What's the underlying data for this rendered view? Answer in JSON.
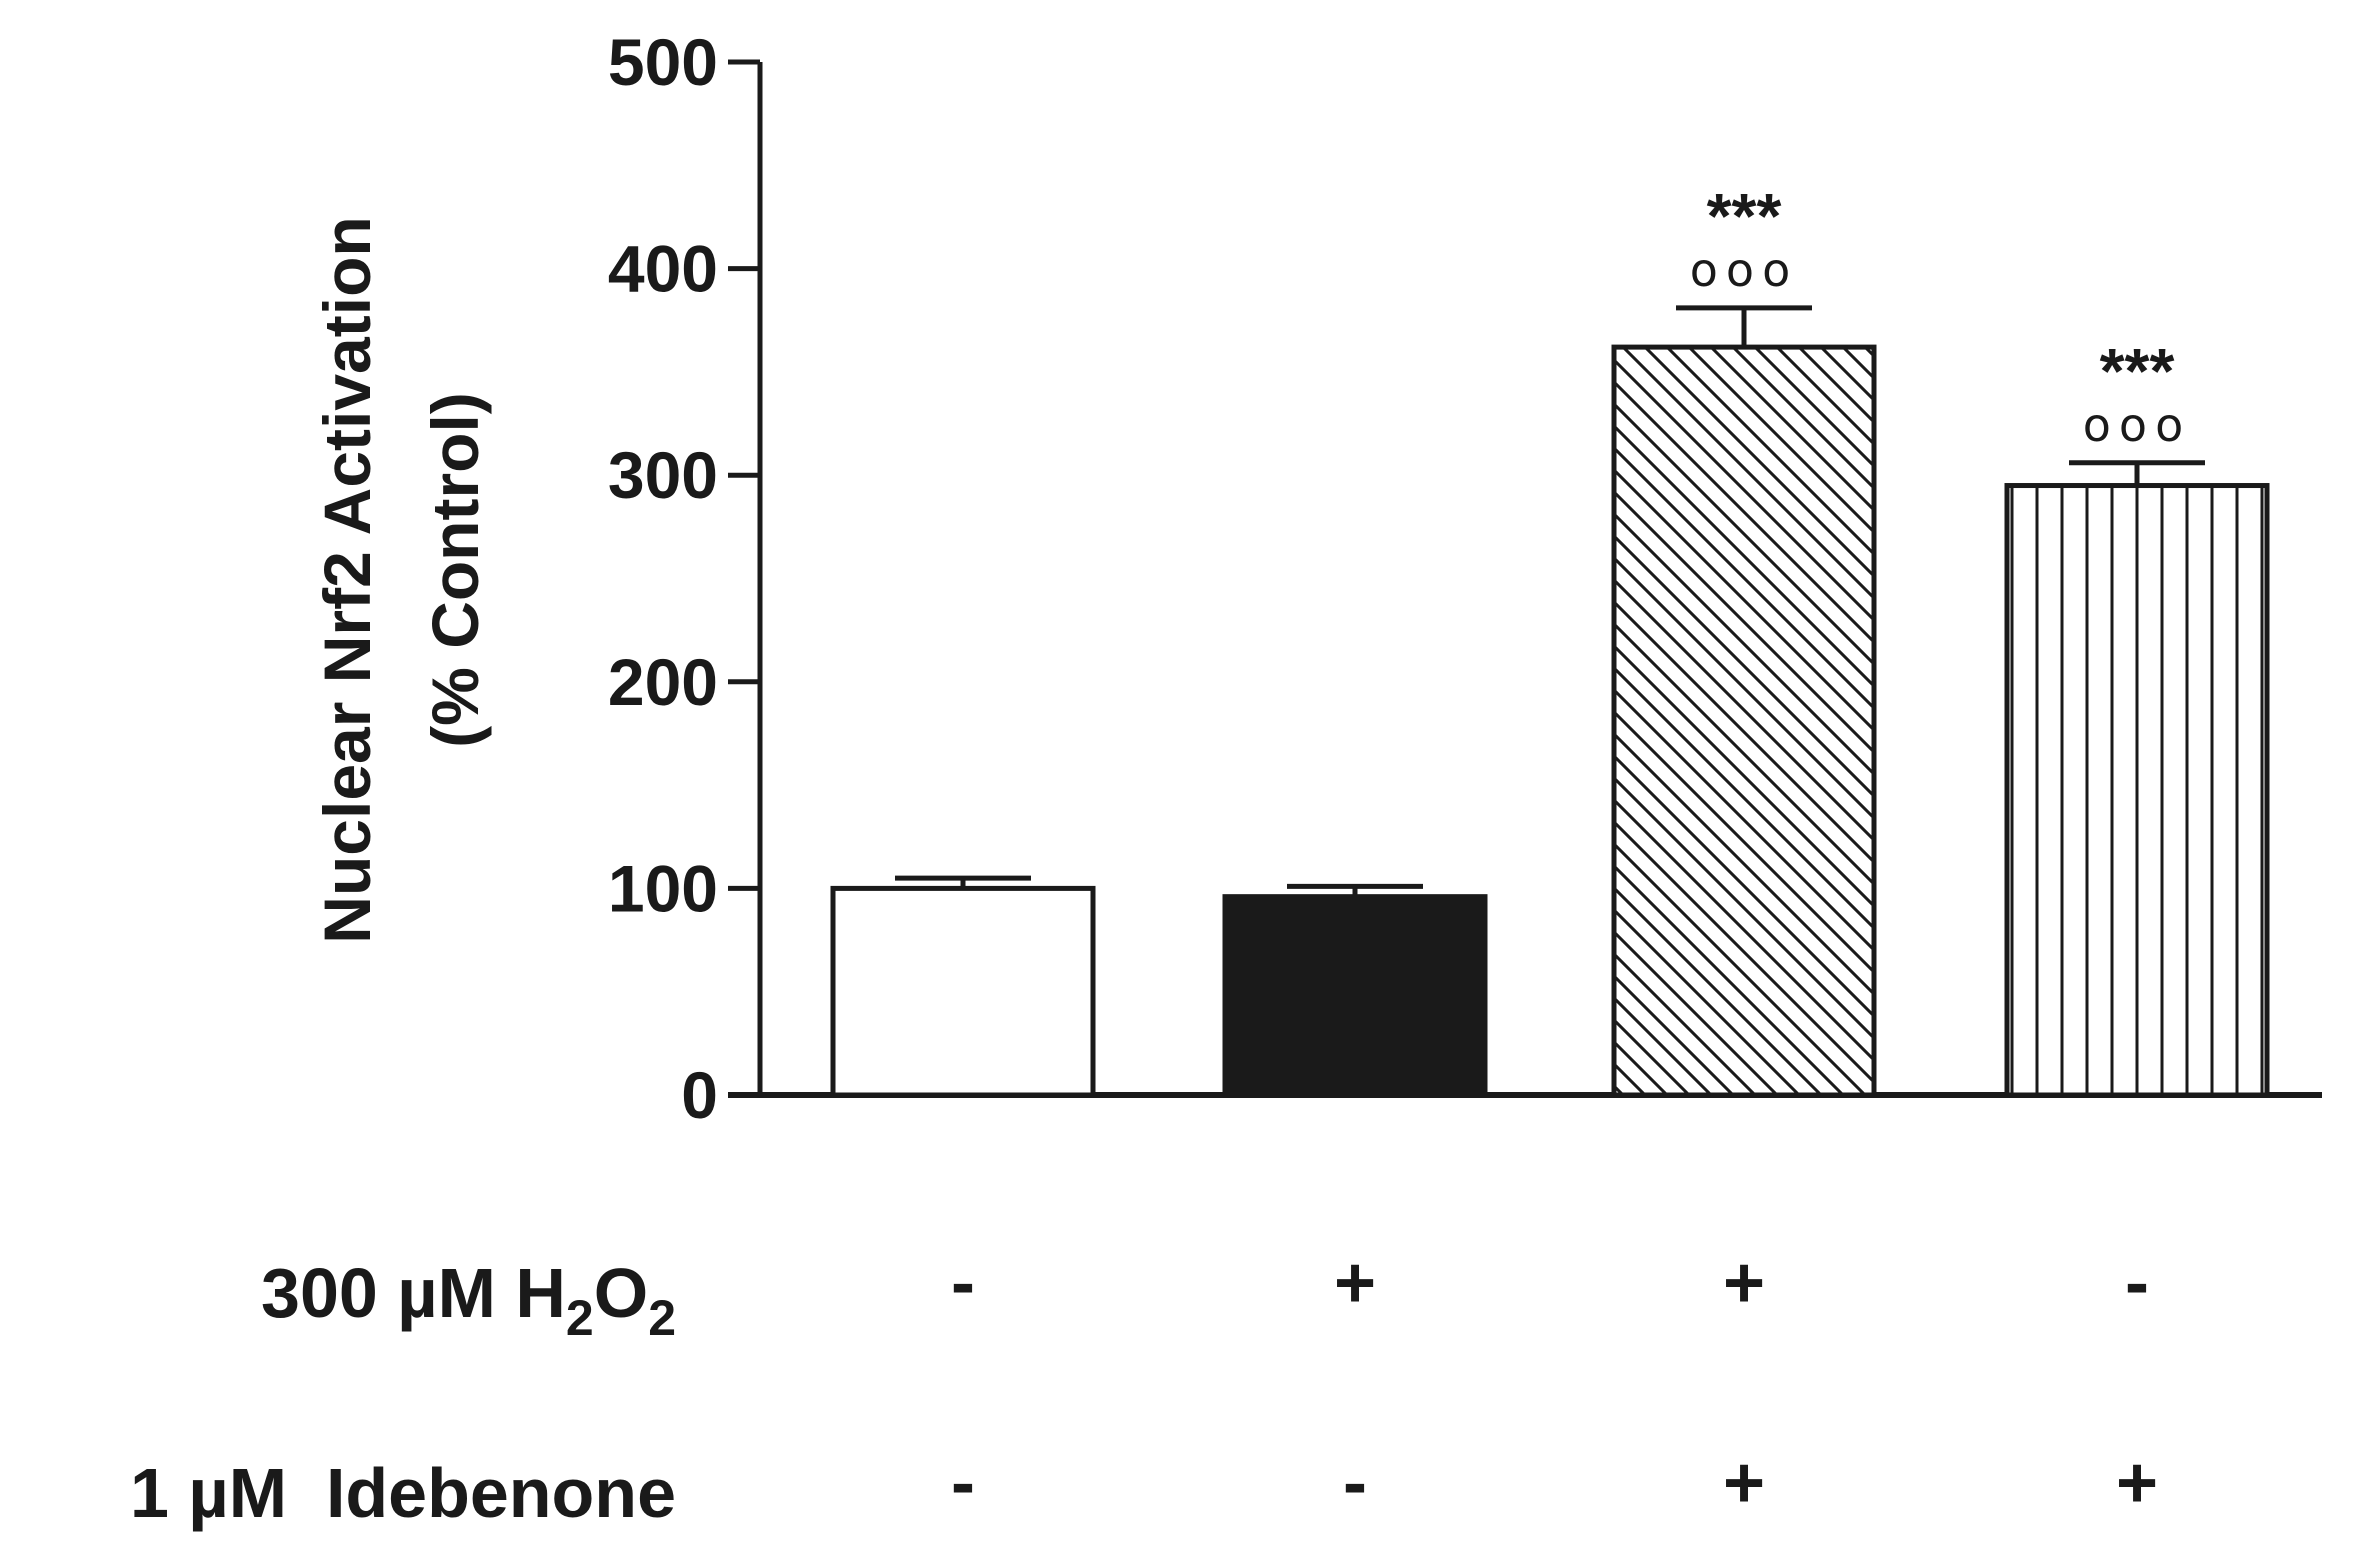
{
  "chart_data": {
    "type": "bar",
    "ylabel_line1": "Nuclear Nrf2 Activation",
    "ylabel_line2": "(% Control)",
    "ylim": [
      0,
      500
    ],
    "yticks": [
      "0",
      "100",
      "200",
      "300",
      "400",
      "500"
    ],
    "bars": [
      {
        "value": 100,
        "error": 5,
        "fill": "white",
        "sig_stars": "",
        "sig_circles": ""
      },
      {
        "value": 96,
        "error": 5,
        "fill": "black",
        "sig_stars": "",
        "sig_circles": ""
      },
      {
        "value": 362,
        "error": 19,
        "fill": "diagonal-hatch",
        "sig_stars": "***",
        "sig_circles": "ooo"
      },
      {
        "value": 295,
        "error": 11,
        "fill": "vertical-hatch",
        "sig_stars": "***",
        "sig_circles": "ooo"
      }
    ],
    "treatments": [
      {
        "name_prefix": "300 µM H",
        "sub1": "2",
        "mid": "O",
        "sub2": "2",
        "signs": [
          "-",
          "+",
          "+",
          "-"
        ]
      },
      {
        "name": "1 µM  Idebenone",
        "signs": [
          "-",
          "-",
          "+",
          "+"
        ]
      }
    ],
    "colors": {
      "axis": "#1a1a1a",
      "black_bar": "#1a1a1a",
      "white_bar": "#ffffff"
    }
  }
}
